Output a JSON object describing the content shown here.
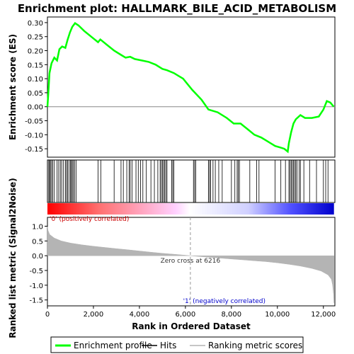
{
  "chart_data": {
    "type": "line",
    "title": "Enrichment plot: HALLMARK_BILE_ACID_METABOLISM",
    "es_panel": {
      "ylabel": "Enrichment score (ES)",
      "ylim": [
        -0.18,
        0.32
      ],
      "yticks": [
        "-0.15",
        "-0.10",
        "-0.05",
        "0.00",
        "0.05",
        "0.10",
        "0.15",
        "0.20",
        "0.25",
        "0.30"
      ],
      "ytick_values": [
        -0.15,
        -0.1,
        -0.05,
        0.0,
        0.05,
        0.1,
        0.15,
        0.2,
        0.25,
        0.3
      ],
      "series_name": "Enrichment profile",
      "color": "#00ff00",
      "points": [
        [
          0,
          0.0
        ],
        [
          40,
          0.05
        ],
        [
          90,
          0.12
        ],
        [
          180,
          0.155
        ],
        [
          300,
          0.175
        ],
        [
          420,
          0.165
        ],
        [
          520,
          0.205
        ],
        [
          640,
          0.215
        ],
        [
          780,
          0.21
        ],
        [
          880,
          0.24
        ],
        [
          980,
          0.265
        ],
        [
          1080,
          0.285
        ],
        [
          1200,
          0.298
        ],
        [
          1350,
          0.29
        ],
        [
          1600,
          0.27
        ],
        [
          1900,
          0.25
        ],
        [
          2200,
          0.23
        ],
        [
          2300,
          0.24
        ],
        [
          2600,
          0.22
        ],
        [
          2900,
          0.2
        ],
        [
          3200,
          0.185
        ],
        [
          3400,
          0.175
        ],
        [
          3600,
          0.178
        ],
        [
          3800,
          0.17
        ],
        [
          4100,
          0.165
        ],
        [
          4400,
          0.16
        ],
        [
          4700,
          0.15
        ],
        [
          5000,
          0.135
        ],
        [
          5200,
          0.13
        ],
        [
          5500,
          0.12
        ],
        [
          5900,
          0.1
        ],
        [
          6300,
          0.06
        ],
        [
          6700,
          0.025
        ],
        [
          7000,
          -0.01
        ],
        [
          7400,
          -0.02
        ],
        [
          7800,
          -0.04
        ],
        [
          8100,
          -0.06
        ],
        [
          8400,
          -0.06
        ],
        [
          8700,
          -0.08
        ],
        [
          9000,
          -0.1
        ],
        [
          9300,
          -0.11
        ],
        [
          9600,
          -0.125
        ],
        [
          9900,
          -0.14
        ],
        [
          10100,
          -0.145
        ],
        [
          10300,
          -0.15
        ],
        [
          10450,
          -0.16
        ],
        [
          10500,
          -0.13
        ],
        [
          10600,
          -0.09
        ],
        [
          10700,
          -0.06
        ],
        [
          10800,
          -0.045
        ],
        [
          11000,
          -0.03
        ],
        [
          11200,
          -0.04
        ],
        [
          11500,
          -0.04
        ],
        [
          11800,
          -0.035
        ],
        [
          12000,
          -0.01
        ],
        [
          12150,
          0.02
        ],
        [
          12300,
          0.015
        ],
        [
          12450,
          0.0
        ]
      ]
    },
    "hits": [
      60,
      90,
      130,
      180,
      230,
      300,
      420,
      490,
      560,
      620,
      700,
      780,
      830,
      880,
      940,
      1000,
      1040,
      1080,
      1130,
      1180,
      1250,
      2200,
      2320,
      2900,
      3200,
      3300,
      3450,
      3550,
      3600,
      3680,
      3850,
      3950,
      4050,
      4150,
      4300,
      4500,
      4650,
      4800,
      4900,
      4950,
      5000,
      5050,
      5100,
      5150,
      5200,
      5400,
      5450,
      5500,
      6350,
      6400,
      6450,
      7000,
      7050,
      7100,
      7200,
      7300,
      7450,
      7600,
      8000,
      8150,
      8250,
      8300,
      8350,
      8800,
      9100,
      9200,
      9900,
      10150,
      10350,
      10500,
      10550,
      10600,
      10650,
      10700,
      10750,
      10800,
      10850,
      10950,
      11000,
      11150,
      11400,
      11700,
      12000,
      12100,
      12200
    ],
    "rank_panel": {
      "ylabel": "Ranked list metric (Signal2Noise)",
      "ylim": [
        -1.7,
        1.3
      ],
      "yticks": [
        "-1.5",
        "-1.0",
        "-0.5",
        "0.0",
        "0.5",
        "1.0"
      ],
      "ytick_values": [
        -1.5,
        -1.0,
        -0.5,
        0.0,
        0.5,
        1.0
      ],
      "series_name": "Ranking metric scores",
      "color": "#b4b4b4",
      "points": [
        [
          0,
          0.98
        ],
        [
          30,
          0.85
        ],
        [
          100,
          0.72
        ],
        [
          300,
          0.6
        ],
        [
          600,
          0.5
        ],
        [
          1000,
          0.43
        ],
        [
          1500,
          0.37
        ],
        [
          2000,
          0.32
        ],
        [
          2500,
          0.28
        ],
        [
          3000,
          0.24
        ],
        [
          3500,
          0.2
        ],
        [
          4000,
          0.16
        ],
        [
          4500,
          0.12
        ],
        [
          5000,
          0.08
        ],
        [
          5500,
          0.05
        ],
        [
          6000,
          0.015
        ],
        [
          6216,
          0.0
        ],
        [
          6500,
          -0.02
        ],
        [
          7000,
          -0.05
        ],
        [
          7500,
          -0.08
        ],
        [
          8000,
          -0.11
        ],
        [
          8500,
          -0.14
        ],
        [
          9000,
          -0.17
        ],
        [
          9500,
          -0.2
        ],
        [
          10000,
          -0.24
        ],
        [
          10500,
          -0.29
        ],
        [
          11000,
          -0.35
        ],
        [
          11500,
          -0.43
        ],
        [
          11900,
          -0.52
        ],
        [
          12200,
          -0.65
        ],
        [
          12350,
          -0.8
        ],
        [
          12400,
          -1.0
        ],
        [
          12440,
          -1.3
        ],
        [
          12460,
          -1.6
        ]
      ],
      "zero_cross_label": "Zero cross at 6216",
      "zero_cross_rank": 6216,
      "pos_label": "'0' (positively correlated)",
      "neg_label": "'1' (negatively correlated)"
    },
    "x_axis": {
      "xlabel": "Rank in Ordered Dataset",
      "xlim": [
        0,
        12500
      ],
      "xticks": [
        "0",
        "2,000",
        "4,000",
        "6,000",
        "8,000",
        "10,000",
        "12,000"
      ],
      "xtick_values": [
        0,
        2000,
        4000,
        6000,
        8000,
        10000,
        12000
      ]
    },
    "legend": {
      "placement": "bottom",
      "entries": [
        {
          "label": "Enrichment profile",
          "color": "#00ff00"
        },
        {
          "label": "Hits",
          "color": "#000000"
        },
        {
          "label": "Ranking metric scores",
          "color": "#b4b4b4"
        }
      ]
    }
  }
}
